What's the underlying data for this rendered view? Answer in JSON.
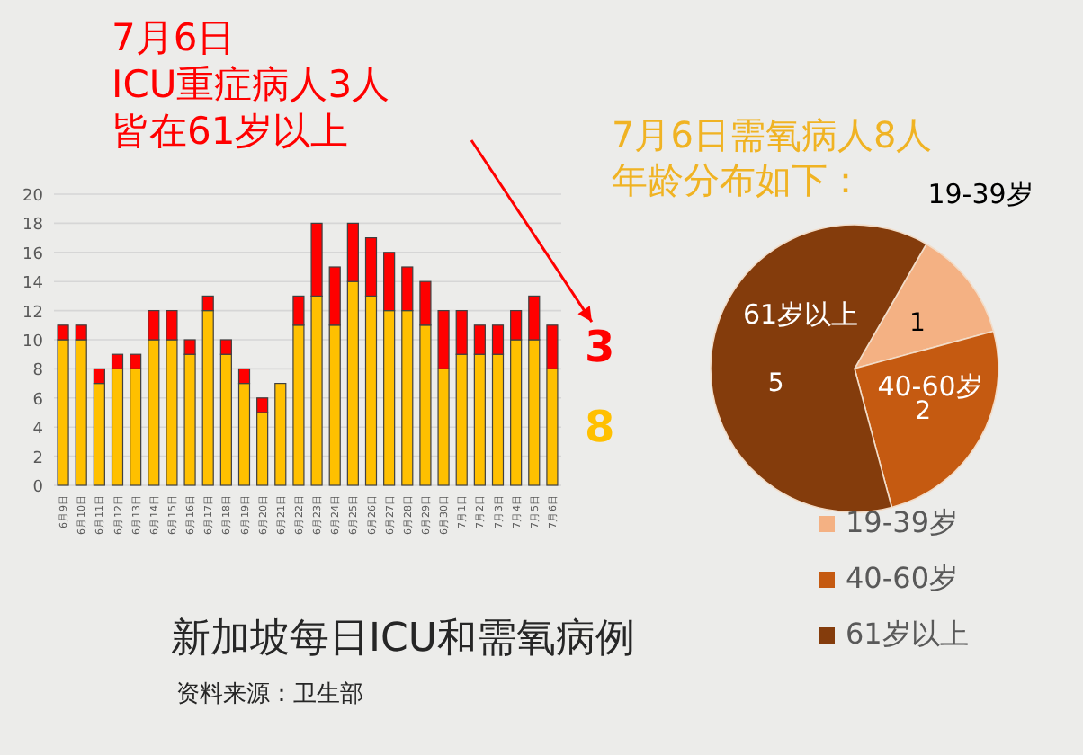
{
  "chart_data": [
    {
      "type": "bar",
      "stacked": true,
      "title": "新加坡每日ICU和需氧病例",
      "categories": [
        "6月9日",
        "6月10日",
        "6月11日",
        "6月12日",
        "6月13日",
        "6月14日",
        "6月15日",
        "6月16日",
        "6月17日",
        "6月18日",
        "6月19日",
        "6月20日",
        "6月21日",
        "6月22日",
        "6月23日",
        "6月24日",
        "6月25日",
        "6月26日",
        "6月27日",
        "6月28日",
        "6月29日",
        "6月30日",
        "7月1日",
        "7月2日",
        "7月3日",
        "7月4日",
        "7月5日",
        "7月6日"
      ],
      "series": [
        {
          "color": "#ffc000",
          "values": [
            10,
            10,
            7,
            8,
            8,
            10,
            10,
            9,
            12,
            9,
            7,
            5,
            7,
            11,
            13,
            11,
            14,
            13,
            12,
            12,
            11,
            8,
            9,
            9,
            9,
            10,
            10,
            8
          ]
        },
        {
          "color": "#ff0000",
          "values": [
            1,
            1,
            1,
            1,
            1,
            2,
            2,
            1,
            1,
            1,
            1,
            1,
            0,
            2,
            5,
            4,
            4,
            4,
            4,
            3,
            3,
            4,
            3,
            2,
            2,
            2,
            3,
            3
          ]
        }
      ],
      "ylim": [
        0,
        20
      ],
      "yticks": [
        0,
        2,
        4,
        6,
        8,
        10,
        12,
        14,
        16,
        18,
        20
      ],
      "grid": "y",
      "legend": false,
      "annotations": [
        "7月6日",
        "ICU重症病人3人",
        "皆在61岁以上",
        {
          "text": "3",
          "x": "7月6日",
          "y": 9.5
        },
        {
          "text": "8",
          "x": "7月6日",
          "y": 4
        },
        "资料来源：卫生部"
      ]
    },
    {
      "type": "pie",
      "title": "7月6日需氧病人8人年龄分布如下：",
      "categories": [
        "19-39岁",
        "40-60岁",
        "61岁以上"
      ],
      "values": [
        1,
        2,
        5
      ],
      "colors": [
        "#f4b183",
        "#c55a11",
        "#843c0c"
      ],
      "data_labels": true,
      "legend": "bottom right"
    }
  ]
}
